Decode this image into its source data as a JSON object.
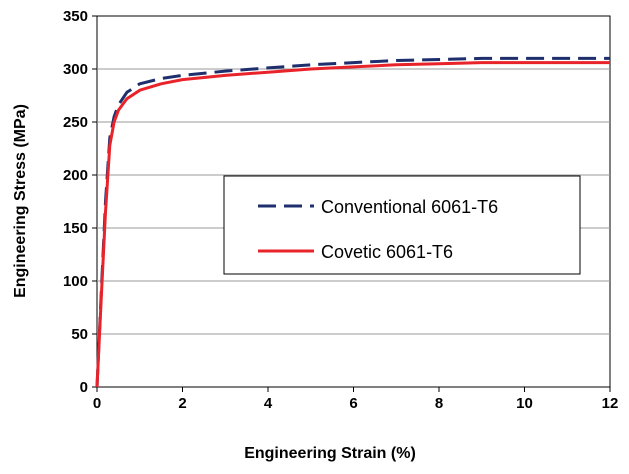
{
  "chart_data": {
    "type": "line",
    "title": "",
    "xlabel": "Engineering Strain (%)",
    "ylabel": "Engineering Stress (MPa)",
    "xlim": [
      0,
      12
    ],
    "ylim": [
      0,
      350
    ],
    "x_ticks": [
      0,
      2,
      4,
      6,
      8,
      10,
      12
    ],
    "y_ticks": [
      0,
      50,
      100,
      150,
      200,
      250,
      300,
      350
    ],
    "grid": "horizontal",
    "legend_position": "center-right",
    "series": [
      {
        "name": "Conventional 6061-T6",
        "color": "#1f2f6e",
        "line_style": "dashed",
        "x": [
          0,
          0.1,
          0.2,
          0.3,
          0.4,
          0.5,
          0.7,
          1.0,
          1.5,
          2.0,
          3.0,
          4.0,
          5.0,
          6.0,
          7.0,
          8.0,
          9.0,
          10.0,
          11.0,
          12.0
        ],
        "y": [
          0,
          90,
          175,
          235,
          255,
          266,
          278,
          286,
          291,
          294,
          298,
          301,
          304,
          306,
          308,
          309,
          310,
          310,
          310,
          310
        ]
      },
      {
        "name": "Covetic 6061-T6",
        "color": "#e8232a",
        "line_style": "solid",
        "x": [
          0,
          0.1,
          0.2,
          0.3,
          0.4,
          0.5,
          0.7,
          1.0,
          1.5,
          2.0,
          3.0,
          4.0,
          5.0,
          6.0,
          7.0,
          8.0,
          9.0,
          10.0,
          11.0,
          12.0
        ],
        "y": [
          0,
          85,
          165,
          228,
          250,
          261,
          272,
          280,
          286,
          290,
          294,
          297,
          300,
          302,
          304,
          305,
          306,
          306,
          306,
          306
        ]
      }
    ]
  }
}
